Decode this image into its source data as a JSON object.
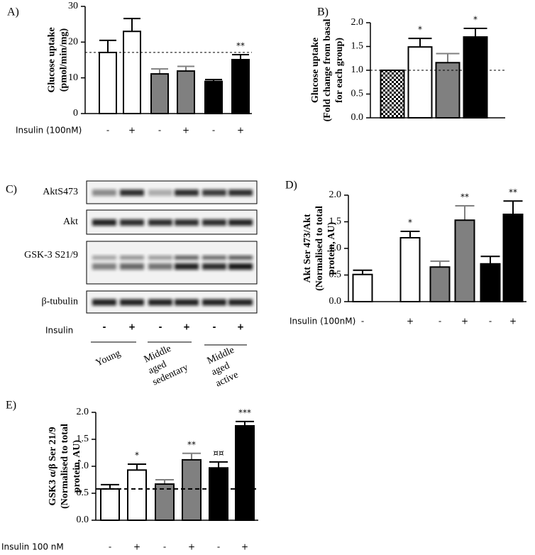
{
  "chart_data": [
    {
      "type": "bar",
      "panel": "A)",
      "ylabel": [
        "Glucose uptake",
        "(pmol/min/mg)"
      ],
      "x_label": "Insulin (100nM)",
      "categories": [
        "-",
        "+",
        "-",
        "+",
        "-",
        "+"
      ],
      "values": [
        17.1,
        23.0,
        11.1,
        11.9,
        9.0,
        15.1
      ],
      "errors": [
        3.4,
        3.6,
        1.4,
        1.3,
        0.5,
        1.4
      ],
      "colors": [
        "#ffffff",
        "#ffffff",
        "#808080",
        "#808080",
        "#000000",
        "#000000"
      ],
      "significance": [
        null,
        null,
        null,
        null,
        null,
        "**"
      ],
      "reference_line": 17.1,
      "ylim": [
        0,
        30
      ],
      "yticks": [
        0,
        10,
        20,
        30
      ]
    },
    {
      "type": "bar",
      "panel": "B)",
      "ylabel": [
        "Glucose uptake",
        "(Fold change from basal",
        "for each group)"
      ],
      "categories": [
        null,
        null,
        null,
        null
      ],
      "values": [
        1.0,
        1.49,
        1.16,
        1.7
      ],
      "errors": [
        0,
        0.18,
        0.19,
        0.18
      ],
      "colors": [
        "checker",
        "#ffffff",
        "#808080",
        "#000000"
      ],
      "significance": [
        null,
        "*",
        null,
        "*"
      ],
      "reference_line": 1.0,
      "ylim": [
        0,
        2
      ],
      "yticks": [
        {
          "value": 0,
          "label": "0.0"
        },
        0.5,
        {
          "value": 1,
          "label": "1.0"
        },
        1.5,
        {
          "value": 2,
          "label": "2.0"
        }
      ]
    },
    {
      "type": "bar",
      "panel": "D)",
      "ylabel": [
        "Akt Ser 473/Akt",
        "(Normalised to total",
        "protein, AU)"
      ],
      "x_label": "Insulin (100nM)",
      "categories": [
        "-",
        "+",
        "-",
        "+",
        "-",
        "+"
      ],
      "values": [
        0.51,
        1.2,
        0.65,
        1.53,
        0.71,
        1.64
      ],
      "errors": [
        0.08,
        0.12,
        0.11,
        0.27,
        0.14,
        0.25
      ],
      "colors": [
        "#ffffff",
        "#ffffff",
        "#808080",
        "#808080",
        "#000000",
        "#000000"
      ],
      "significance": [
        null,
        "*",
        null,
        "**",
        null,
        "**"
      ],
      "ylim": [
        0,
        2
      ],
      "yticks": [
        {
          "value": 0,
          "label": "0.0"
        },
        0.5,
        {
          "value": 1,
          "label": "1.0"
        },
        1.5,
        {
          "value": 2,
          "label": "2.0"
        }
      ]
    },
    {
      "type": "bar",
      "panel": "E)",
      "ylabel": [
        "GSK3 α/β Ser 21/9",
        "(Normalised to total",
        "protein, AU)"
      ],
      "x_label": "Insulin 100 nM",
      "categories": [
        "-",
        "+",
        "-",
        "+",
        "-",
        "+"
      ],
      "values": [
        0.58,
        0.93,
        0.67,
        1.12,
        0.97,
        1.75
      ],
      "errors": [
        0.08,
        0.11,
        0.08,
        0.12,
        0.11,
        0.08
      ],
      "colors": [
        "#ffffff",
        "#ffffff",
        "#808080",
        "#808080",
        "#000000",
        "#000000"
      ],
      "significance": [
        null,
        "*",
        null,
        "**",
        "¤¤",
        "***"
      ],
      "reference_line": 0.58,
      "ylim": [
        0,
        2
      ],
      "yticks": [
        {
          "value": 0,
          "label": "0.0"
        },
        0.5,
        {
          "value": 1,
          "label": "1.0"
        },
        1.5,
        {
          "value": 2,
          "label": "2.0"
        }
      ]
    }
  ],
  "blot": {
    "panel": "C)",
    "rows": [
      "AktS473",
      "Akt",
      "GSK-3 S21/9",
      "β-tubulin"
    ],
    "treatment": "Insulin",
    "signs": [
      "-",
      "+",
      "-",
      "+",
      "-",
      "+"
    ],
    "groups": [
      [
        "Young"
      ],
      [
        "Middle",
        "aged",
        "sedentary"
      ],
      [
        "Middle",
        "aged",
        "active"
      ]
    ]
  }
}
